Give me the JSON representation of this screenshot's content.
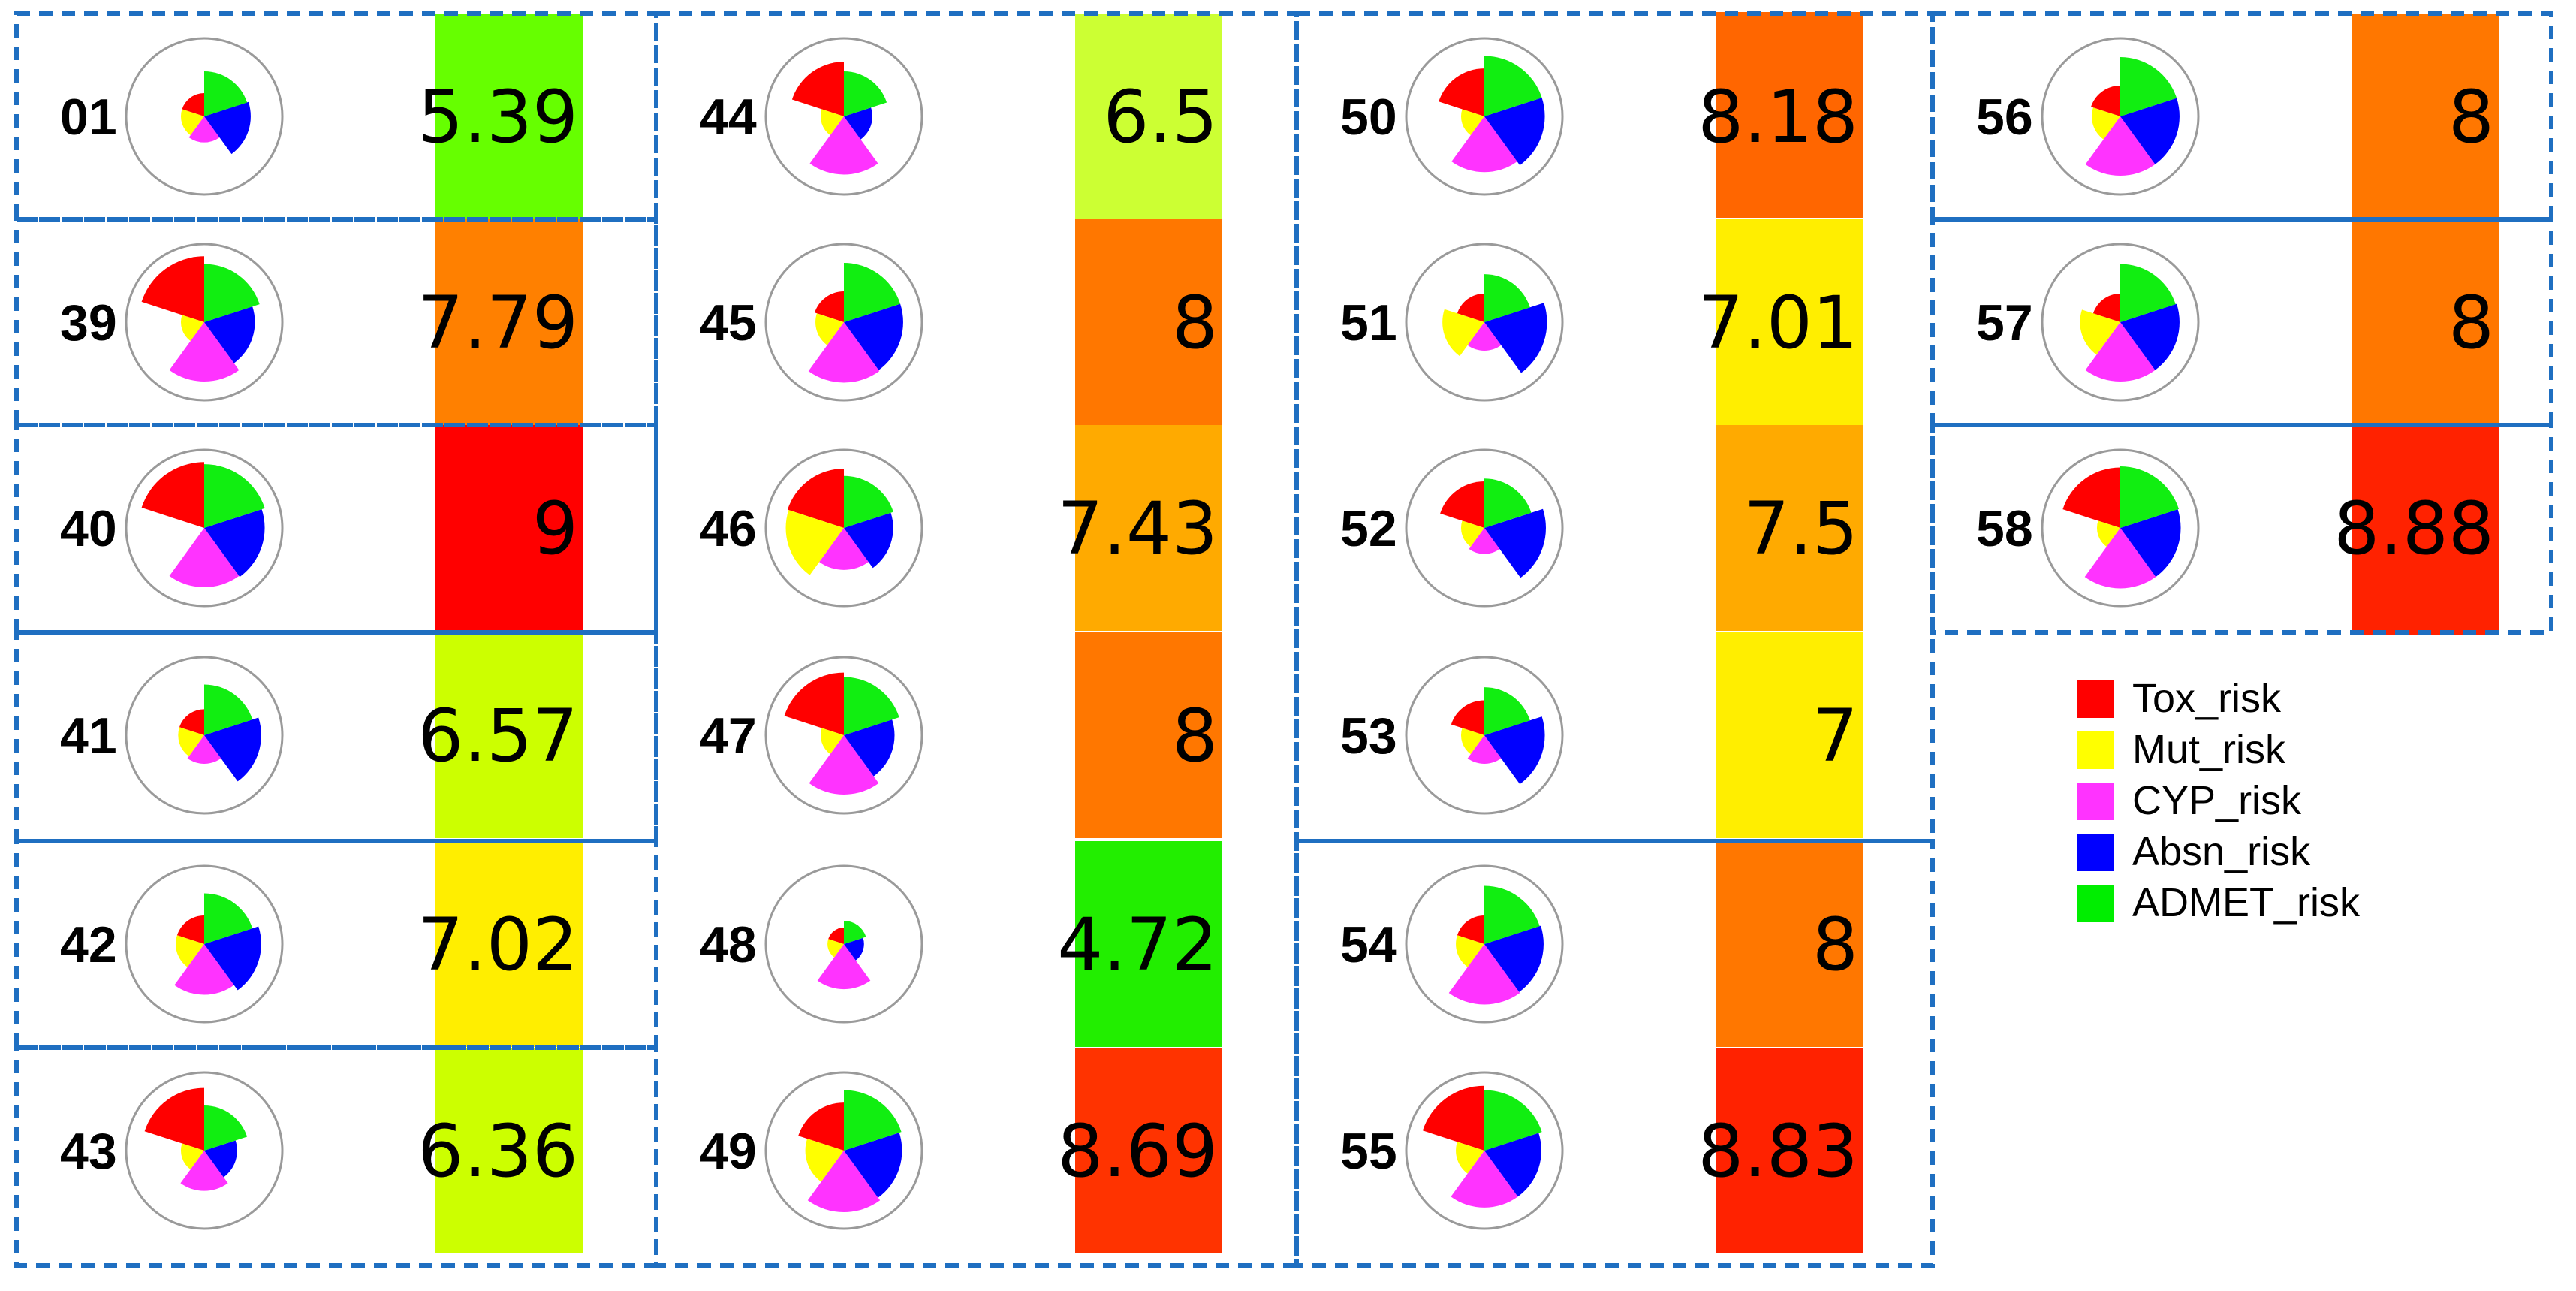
{
  "chart_data": {
    "type": "polar-area-grid",
    "risk_max": 2,
    "legend": [
      {
        "key": "tox",
        "label": "Tox_risk",
        "color": "#ff0000"
      },
      {
        "key": "mut",
        "label": "Mut_risk",
        "color": "#ffff00"
      },
      {
        "key": "cyp",
        "label": "CYP_risk",
        "color": "#ff33ff"
      },
      {
        "key": "absn",
        "label": "Absn_risk",
        "color": "#0000ff"
      },
      {
        "key": "admet",
        "label": "ADMET_risk",
        "color": "#00ee00"
      }
    ],
    "wedge_colors": {
      "tox": "#ff0000",
      "mut": "#ffff00",
      "cyp": "#ff33ff",
      "absn": "#0000ff",
      "admet": "#11ee11"
    },
    "compounds": [
      {
        "id": "01",
        "score_label": "5.39",
        "score": 5.39,
        "color": "#66ff00",
        "risks": {
          "tox": 0.2,
          "mut": 0.2,
          "cyp": 0.25,
          "absn": 0.8,
          "admet": 0.75
        }
      },
      {
        "id": "39",
        "score_label": "7.79",
        "score": 7.79,
        "color": "#ff8000",
        "risks": {
          "tox": 1.6,
          "mut": 0.2,
          "cyp": 1.3,
          "absn": 0.95,
          "admet": 1.25
        }
      },
      {
        "id": "40",
        "score_label": "9",
        "score": 9,
        "color": "#ff0000",
        "risks": {
          "tox": 1.6,
          "mut": 0.0,
          "cyp": 1.3,
          "absn": 1.35,
          "admet": 1.5
        }
      },
      {
        "id": "41",
        "score_label": "6.57",
        "score": 6.57,
        "color": "#ccff00",
        "risks": {
          "tox": 0.25,
          "mut": 0.25,
          "cyp": 0.3,
          "absn": 1.2,
          "admet": 0.95
        }
      },
      {
        "id": "42",
        "score_label": "7.02",
        "score": 7.02,
        "color": "#ffee00",
        "risks": {
          "tox": 0.3,
          "mut": 0.3,
          "cyp": 0.95,
          "absn": 1.2,
          "admet": 0.95
        }
      },
      {
        "id": "43",
        "score_label": "6.36",
        "score": 6.36,
        "color": "#ccff00",
        "risks": {
          "tox": 1.45,
          "mut": 0.2,
          "cyp": 0.6,
          "absn": 0.4,
          "admet": 0.75
        }
      },
      {
        "id": "44",
        "score_label": "6.5",
        "score": 6.5,
        "color": "#ccff33",
        "risks": {
          "tox": 1.1,
          "mut": 0.2,
          "cyp": 1.25,
          "absn": 0.3,
          "admet": 0.75
        }
      },
      {
        "id": "45",
        "score_label": "8",
        "score": 8,
        "color": "#ff7700",
        "risks": {
          "tox": 0.35,
          "mut": 0.3,
          "cyp": 1.35,
          "absn": 1.3,
          "admet": 1.3
        }
      },
      {
        "id": "46",
        "score_label": "7.43",
        "score": 7.43,
        "color": "#ffaa00",
        "risks": {
          "tox": 1.3,
          "mut": 1.25,
          "cyp": 0.65,
          "absn": 0.9,
          "admet": 1.0
        }
      },
      {
        "id": "47",
        "score_label": "8",
        "score": 8,
        "color": "#ff7700",
        "risks": {
          "tox": 1.45,
          "mut": 0.2,
          "cyp": 1.3,
          "absn": 0.95,
          "admet": 1.25
        }
      },
      {
        "id": "48",
        "score_label": "4.72",
        "score": 4.72,
        "color": "#22ee00",
        "risks": {
          "tox": 0.1,
          "mut": 0.1,
          "cyp": 0.75,
          "absn": 0.15,
          "admet": 0.2
        }
      },
      {
        "id": "49",
        "score_label": "8.69",
        "score": 8.69,
        "color": "#ff3300",
        "risks": {
          "tox": 0.85,
          "mut": 0.55,
          "cyp": 1.4,
          "absn": 1.25,
          "admet": 1.35
        }
      },
      {
        "id": "50",
        "score_label": "8.18",
        "score": 8.18,
        "color": "#ff6600",
        "risks": {
          "tox": 0.85,
          "mut": 0.2,
          "cyp": 1.15,
          "absn": 1.35,
          "admet": 1.35
        }
      },
      {
        "id": "51",
        "score_label": "7.01",
        "score": 7.01,
        "color": "#ffee00",
        "risks": {
          "tox": 0.3,
          "mut": 0.65,
          "cyp": 0.3,
          "absn": 1.45,
          "admet": 0.85
        }
      },
      {
        "id": "52",
        "score_label": "7.5",
        "score": 7.5,
        "color": "#ffaa00",
        "risks": {
          "tox": 0.8,
          "mut": 0.2,
          "cyp": 0.25,
          "absn": 1.4,
          "admet": 0.9
        }
      },
      {
        "id": "53",
        "score_label": "7",
        "score": 7,
        "color": "#ffee00",
        "risks": {
          "tox": 0.45,
          "mut": 0.2,
          "cyp": 0.3,
          "absn": 1.35,
          "admet": 0.85
        }
      },
      {
        "id": "54",
        "score_label": "8",
        "score": 8,
        "color": "#ff7700",
        "risks": {
          "tox": 0.3,
          "mut": 0.3,
          "cyp": 1.35,
          "absn": 1.3,
          "admet": 1.25
        }
      },
      {
        "id": "55",
        "score_label": "8.83",
        "score": 8.83,
        "color": "#ff2200",
        "risks": {
          "tox": 1.55,
          "mut": 0.3,
          "cyp": 1.2,
          "absn": 1.2,
          "admet": 1.35
        }
      },
      {
        "id": "56",
        "score_label": "8",
        "score": 8,
        "color": "#ff7700",
        "risks": {
          "tox": 0.35,
          "mut": 0.3,
          "cyp": 1.3,
          "absn": 1.3,
          "admet": 1.3
        }
      },
      {
        "id": "57",
        "score_label": "8",
        "score": 8,
        "color": "#ff7700",
        "risks": {
          "tox": 0.3,
          "mut": 0.6,
          "cyp": 1.3,
          "absn": 1.3,
          "admet": 1.25
        }
      },
      {
        "id": "58",
        "score_label": "8.88",
        "score": 8.88,
        "color": "#ff2200",
        "risks": {
          "tox": 1.35,
          "mut": 0.2,
          "cyp": 1.35,
          "absn": 1.35,
          "admet": 1.4
        }
      }
    ]
  }
}
